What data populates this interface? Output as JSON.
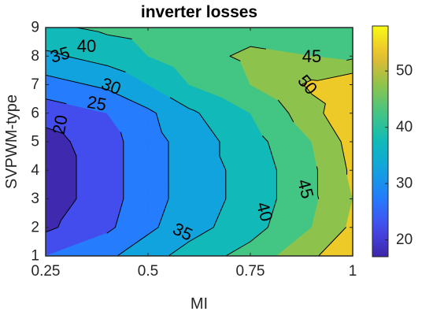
{
  "chart_data": {
    "type": "contour",
    "title": "inverter losses",
    "xlabel": "MI",
    "ylabel": "SVPWM-type",
    "xlim": [
      0.25,
      1
    ],
    "ylim": [
      1,
      9
    ],
    "x_ticks": [
      0.25,
      0.5,
      0.75,
      1
    ],
    "x_tick_labels": [
      "0.25",
      "0.5",
      "0.75",
      "1"
    ],
    "y_ticks": [
      1,
      2,
      3,
      4,
      5,
      6,
      7,
      8,
      9
    ],
    "y_tick_labels": [
      "1",
      "2",
      "3",
      "4",
      "5",
      "6",
      "7",
      "8",
      "9"
    ],
    "x": [
      0.25,
      0.4,
      0.5,
      0.6,
      0.75,
      0.9,
      1.0
    ],
    "y": [
      1,
      2,
      3,
      4,
      5,
      6,
      7,
      8,
      9
    ],
    "z": [
      [
        25,
        29,
        33,
        37,
        42,
        49,
        55
      ],
      [
        19,
        24,
        29,
        33,
        38,
        45,
        51
      ],
      [
        17,
        23,
        28,
        32,
        37,
        44,
        50
      ],
      [
        17,
        23,
        28,
        32,
        37,
        44,
        51
      ],
      [
        18,
        23,
        28,
        32,
        38,
        45,
        52
      ],
      [
        22,
        25,
        29,
        34,
        40,
        48,
        55
      ],
      [
        28,
        31,
        35,
        40,
        45,
        51,
        54
      ],
      [
        34,
        37,
        40,
        43,
        46,
        45,
        44
      ],
      [
        39,
        41,
        42,
        42,
        43,
        42,
        41
      ]
    ],
    "contour_levels": [
      20,
      25,
      30,
      35,
      40,
      45,
      50
    ],
    "contour_labels": [
      {
        "text": "20",
        "x": 0.285,
        "y": 5.6,
        "angle": -80
      },
      {
        "text": "25",
        "x": 0.375,
        "y": 6.35,
        "angle": 10
      },
      {
        "text": "30",
        "x": 0.41,
        "y": 6.95,
        "angle": 20
      },
      {
        "text": "35",
        "x": 0.285,
        "y": 8.05,
        "angle": -15
      },
      {
        "text": "40",
        "x": 0.35,
        "y": 8.35,
        "angle": 0
      },
      {
        "text": "45",
        "x": 0.9,
        "y": 8.0,
        "angle": 0
      },
      {
        "text": "50",
        "x": 0.89,
        "y": 7.0,
        "angle": 50
      },
      {
        "text": "35",
        "x": 0.585,
        "y": 1.85,
        "angle": 25
      },
      {
        "text": "40",
        "x": 0.785,
        "y": 2.55,
        "angle": 75
      },
      {
        "text": "45",
        "x": 0.885,
        "y": 3.35,
        "angle": 75
      }
    ],
    "colorbar": {
      "min": 17,
      "max": 58,
      "ticks": [
        20,
        30,
        40,
        50
      ],
      "tick_labels": [
        "20",
        "30",
        "40",
        "50"
      ]
    },
    "colormap": "parula",
    "legend": "none",
    "grid": false
  }
}
